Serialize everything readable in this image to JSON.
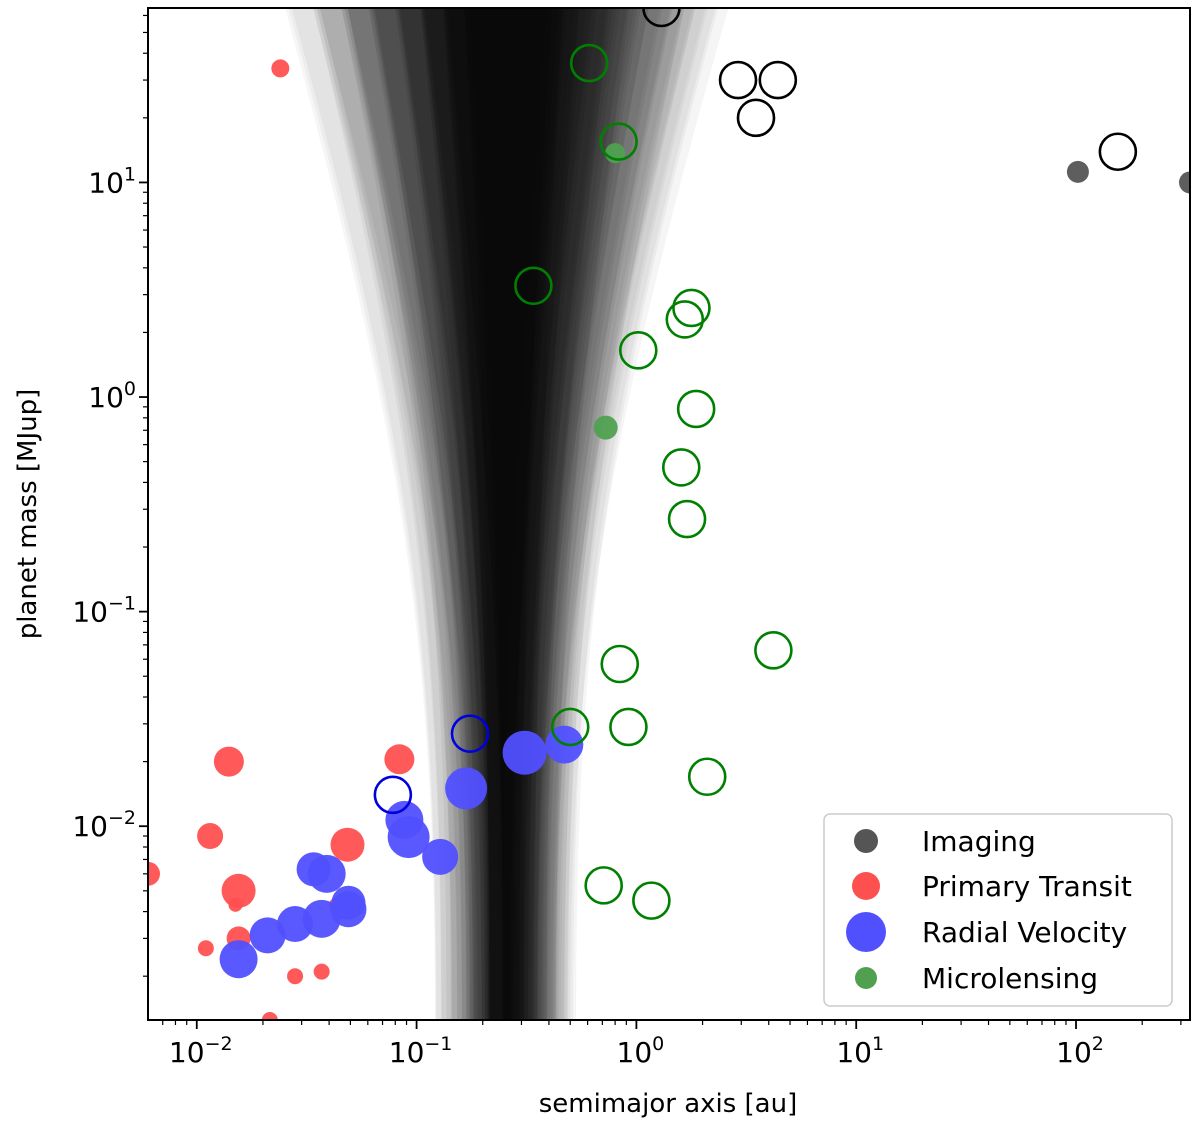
{
  "chart_data": {
    "type": "scatter",
    "xlabel": "semimajor axis [au]",
    "ylabel": "planet mass [MJup]",
    "xscale": "log",
    "yscale": "log",
    "xlim": [
      0.006,
      330
    ],
    "ylim": [
      0.00125,
      65
    ],
    "x_ticks": [
      {
        "value": 0.01,
        "base": "10",
        "exp": "−2"
      },
      {
        "value": 0.1,
        "base": "10",
        "exp": "−1"
      },
      {
        "value": 1,
        "base": "10",
        "exp": "0"
      },
      {
        "value": 10,
        "base": "10",
        "exp": "1"
      },
      {
        "value": 100,
        "base": "10",
        "exp": "2"
      }
    ],
    "y_ticks": [
      {
        "value": 0.01,
        "base": "10",
        "exp": "−2"
      },
      {
        "value": 0.1,
        "base": "10",
        "exp": "−1"
      },
      {
        "value": 1,
        "base": "10",
        "exp": "0"
      },
      {
        "value": 10,
        "base": "10",
        "exp": "1"
      }
    ],
    "legend": {
      "position": "lower-right",
      "entries": [
        {
          "label": "Imaging",
          "color": "#555555"
        },
        {
          "label": "Primary Transit",
          "color": "#ff5050"
        },
        {
          "label": "Radial Velocity",
          "color": "#5050ff"
        },
        {
          "label": "Microlensing",
          "color": "#50a050"
        }
      ]
    },
    "shaded_region": {
      "description": "stacked translucent gray bands of allowed mass vs semimajor axis",
      "color": "#000000",
      "band_count": 44,
      "converge_center_au": 0.26,
      "min_mass": 0.00125,
      "max_mass": 65
    },
    "series": [
      {
        "name": "Imaging",
        "color": "#555555",
        "points": [
          [
            102,
            11.2
          ],
          [
            330,
            10.0
          ]
        ]
      },
      {
        "name": "Imaging (open)",
        "color": "#000000",
        "open": true,
        "points": [
          [
            1.3,
            65
          ],
          [
            2.9,
            30
          ],
          [
            4.4,
            30
          ],
          [
            3.5,
            20
          ],
          [
            155,
            13.9
          ]
        ]
      },
      {
        "name": "Primary Transit",
        "color": "#ff5050",
        "points": [
          [
            0.024,
            34,
            9
          ],
          [
            0.014,
            0.02,
            15
          ],
          [
            0.0115,
            0.009,
            13
          ],
          [
            0.0155,
            0.005,
            17
          ],
          [
            0.015,
            0.0043,
            7
          ],
          [
            0.0155,
            0.003,
            12
          ],
          [
            0.011,
            0.0027,
            8
          ],
          [
            0.006,
            0.006,
            12
          ],
          [
            0.0485,
            0.0082,
            17
          ],
          [
            0.0835,
            0.0205,
            15
          ],
          [
            0.028,
            0.002,
            8
          ],
          [
            0.037,
            0.0021,
            8
          ],
          [
            0.0215,
            0.00125,
            8
          ],
          [
            0.043,
            0.0043,
            7
          ]
        ]
      },
      {
        "name": "Radial Velocity",
        "color": "#5050ff",
        "points": [
          [
            0.0155,
            0.0024,
            19
          ],
          [
            0.021,
            0.0031,
            18
          ],
          [
            0.028,
            0.0035,
            18
          ],
          [
            0.037,
            0.0037,
            19
          ],
          [
            0.034,
            0.0063,
            17
          ],
          [
            0.039,
            0.006,
            19
          ],
          [
            0.049,
            0.0044,
            17
          ],
          [
            0.049,
            0.0041,
            18
          ],
          [
            0.088,
            0.0107,
            19
          ],
          [
            0.092,
            0.0089,
            21
          ],
          [
            0.128,
            0.0072,
            18
          ],
          [
            0.168,
            0.015,
            21
          ],
          [
            0.31,
            0.022,
            22
          ],
          [
            0.47,
            0.024,
            19
          ]
        ]
      },
      {
        "name": "Radial Velocity (open)",
        "color": "#0000dd",
        "open": true,
        "points": [
          [
            0.078,
            0.014
          ],
          [
            0.175,
            0.027
          ]
        ]
      },
      {
        "name": "Microlensing",
        "color": "#50a050",
        "points": [
          [
            0.8,
            13.7,
            10
          ],
          [
            0.725,
            0.72,
            12
          ]
        ]
      },
      {
        "name": "Microlensing (open)",
        "color": "#008000",
        "open": true,
        "points": [
          [
            0.61,
            36
          ],
          [
            0.83,
            15.5
          ],
          [
            0.34,
            3.3
          ],
          [
            1.78,
            2.6
          ],
          [
            1.66,
            2.3
          ],
          [
            1.02,
            1.65
          ],
          [
            1.87,
            0.88
          ],
          [
            1.6,
            0.47
          ],
          [
            1.7,
            0.27
          ],
          [
            0.84,
            0.057
          ],
          [
            4.2,
            0.066
          ],
          [
            0.5,
            0.029
          ],
          [
            0.92,
            0.029
          ],
          [
            2.1,
            0.017
          ],
          [
            0.71,
            0.0053
          ],
          [
            1.17,
            0.0045
          ]
        ]
      }
    ]
  }
}
